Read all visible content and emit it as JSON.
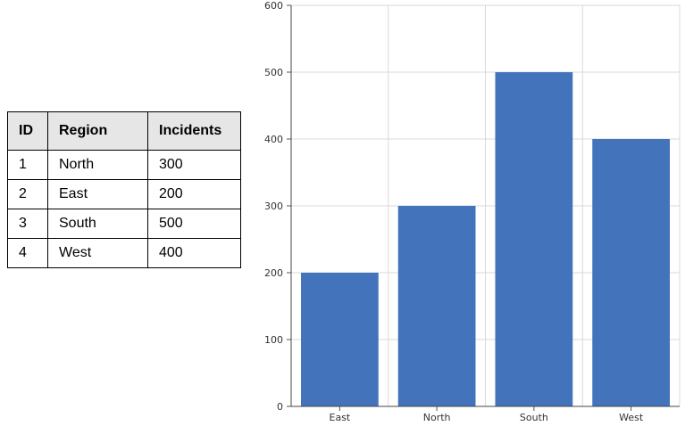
{
  "table": {
    "headers": [
      "ID",
      "Region",
      "Incidents"
    ],
    "rows": [
      [
        "1",
        "North",
        "300"
      ],
      [
        "2",
        "East",
        "200"
      ],
      [
        "3",
        "South",
        "500"
      ],
      [
        "4",
        "West",
        "400"
      ]
    ]
  },
  "chart_data": {
    "type": "bar",
    "categories": [
      "East",
      "North",
      "South",
      "West"
    ],
    "values": [
      200,
      300,
      500,
      400
    ],
    "title": "",
    "xlabel": "",
    "ylabel": "",
    "ylim": [
      0,
      600
    ],
    "yticks": [
      0,
      100,
      200,
      300,
      400,
      500,
      600
    ],
    "grid": true,
    "bar_color": "#4273bb"
  }
}
